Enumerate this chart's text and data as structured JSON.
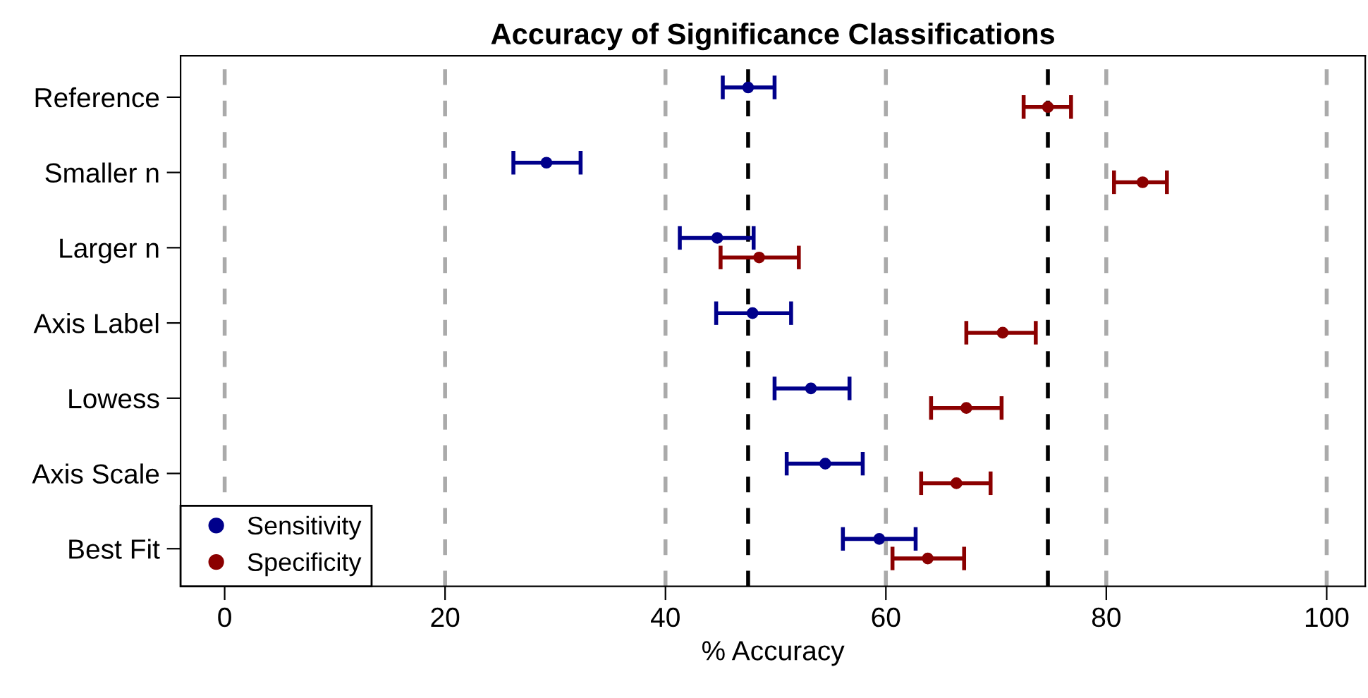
{
  "chart_data": {
    "type": "scatter",
    "orientation": "horizontal",
    "title": "Accuracy of Significance Classifications",
    "xlabel": "% Accuracy",
    "categories": [
      "Reference",
      "Smaller n",
      "Larger n",
      "Axis Label",
      "Lowess",
      "Axis Scale",
      "Best Fit"
    ],
    "series": [
      {
        "name": "Sensitivity",
        "color": "#00008b",
        "values": [
          47.5,
          29.2,
          44.7,
          47.9,
          53.2,
          54.5,
          59.4
        ],
        "errors": [
          [
            45.2,
            49.9
          ],
          [
            26.2,
            32.3
          ],
          [
            41.3,
            48.0
          ],
          [
            44.6,
            51.4
          ],
          [
            49.9,
            56.7
          ],
          [
            51.0,
            57.9
          ],
          [
            56.1,
            62.7
          ]
        ]
      },
      {
        "name": "Specificity",
        "color": "#8b0000",
        "values": [
          74.7,
          83.3,
          48.5,
          70.6,
          67.3,
          66.4,
          63.8
        ],
        "errors": [
          [
            72.5,
            76.8
          ],
          [
            80.7,
            85.5
          ],
          [
            45.0,
            52.1
          ],
          [
            67.3,
            73.6
          ],
          [
            64.1,
            70.5
          ],
          [
            63.2,
            69.5
          ],
          [
            60.6,
            67.1
          ]
        ]
      }
    ],
    "xlim": [
      -4,
      103.5
    ],
    "xticks": [
      0,
      20,
      40,
      60,
      80,
      100
    ],
    "grid": "x",
    "legend": "bottom left",
    "marker": "circle",
    "ref_lines": [
      {
        "axis": "x",
        "value": 47.5,
        "color": "#000000",
        "line_style": "dashed"
      },
      {
        "axis": "x",
        "value": 74.7,
        "color": "#000000",
        "line_style": "dashed"
      }
    ]
  }
}
